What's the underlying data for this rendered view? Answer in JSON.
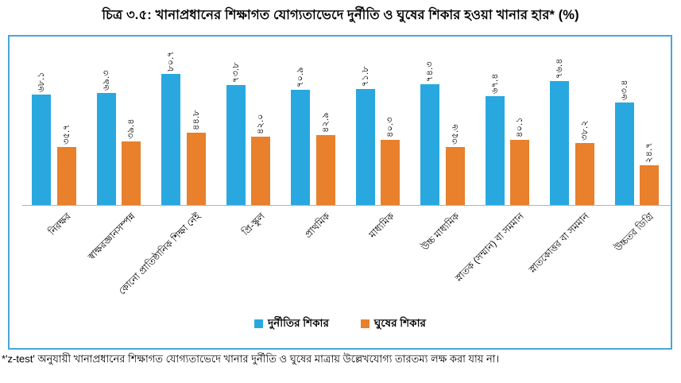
{
  "title": "চিত্র ৩.৫: খানাপ্রধানের শিক্ষাগত যোগ্যতাভেদে দুর্নীতি ও ঘুষের শিকার হওয়া খানার হার* (%)",
  "footnote": "*'z-test' অনুযায়ী খানাপ্রধানের শিক্ষাগত যোগ্যতাভেদে খানার দুর্নীতি ও ঘুষের মাত্রায় উল্লেখযোগ্য তারতম্য লক্ষ করা যায় না।",
  "colors": {
    "corruption_blue": "#29a8e0",
    "bribery_orange": "#e8802c",
    "box_border_blue": "#4aa6d6",
    "axis_gray": "#b3b3b3"
  },
  "chart_data": {
    "type": "bar",
    "title": "চিত্র ৩.৫: খানাপ্রধানের শিক্ষাগত যোগ্যতাভেদে দুর্নীতি ও ঘুষের শিকার হওয়া খানার হার* (%)",
    "xlabel": "",
    "ylabel": "",
    "ylim": [
      0,
      90
    ],
    "grid": false,
    "legend_position": "bottom",
    "value_labels_shown": true,
    "value_label_rotation_deg": 90,
    "category_label_rotation_deg": 45,
    "categories": [
      "নিরক্ষর",
      "স্বাক্ষরজ্ঞানসম্পন্ন",
      "কোনো প্রাতিষ্ঠানিক শিক্ষা নেই",
      "প্রি-স্কুল",
      "প্রাথমিক",
      "মাধ্যমিক",
      "উচ্চ মাধ্যমিক",
      "স্নাতক (সম্মান) বা সমমান",
      "স্নাতকোত্তর বা সমমান",
      "উচ্চতর ডিগ্রি"
    ],
    "series": [
      {
        "name": "দুর্নীতির শিকার",
        "color": "#29a8e0",
        "values": [
          68.1,
          69.3,
          80.7,
          73.8,
          70.9,
          71.8,
          74.3,
          67.4,
          76.4,
          63.4
        ],
        "labels_bn": [
          "৬৮.১",
          "৬৯.৩",
          "৮০.৭",
          "৭৩.৮",
          "৭০.৯",
          "৭১.৮",
          "৭৪.৩",
          "৬৭.৪",
          "৭৬.৪",
          "৬৩.৪"
        ]
      },
      {
        "name": "ঘুষের শিকার",
        "color": "#e8802c",
        "values": [
          35.7,
          39.4,
          44.8,
          42.0,
          42.9,
          40.3,
          35.6,
          40.1,
          38.2,
          24.7
        ],
        "labels_bn": [
          "৩৫.৭",
          "৩৯.৪",
          "৪৪.৮",
          "৪২.০",
          "৪২.৯",
          "৪০.৩",
          "৩৫.৬",
          "৪০.১",
          "৩৮.২",
          "২৪.৭"
        ]
      }
    ]
  }
}
